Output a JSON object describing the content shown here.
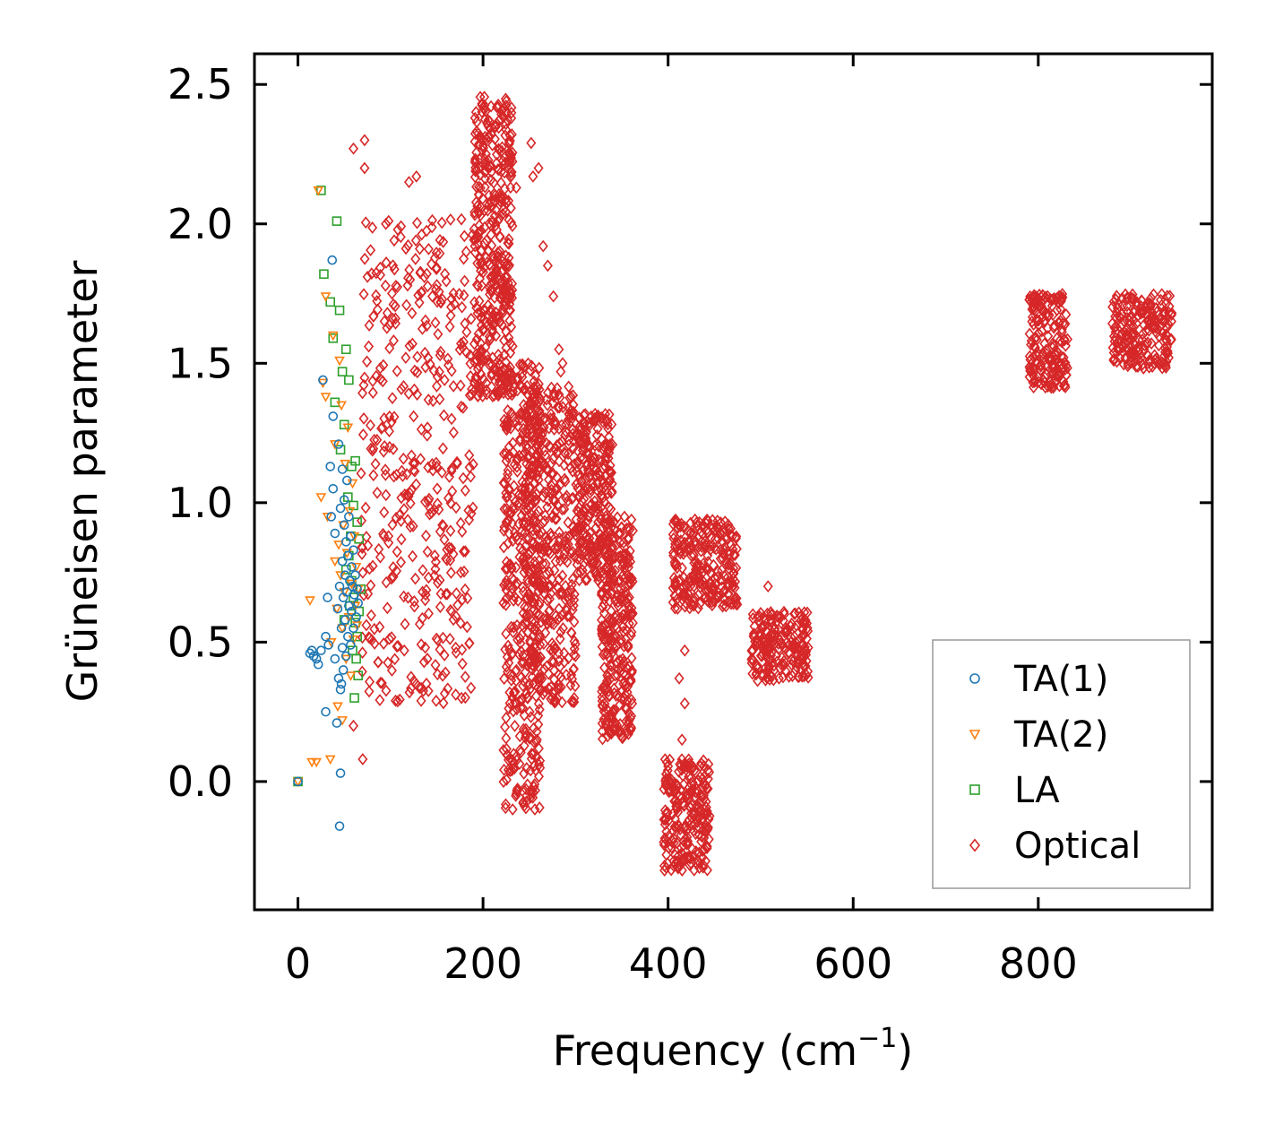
{
  "chart_data": {
    "type": "scatter",
    "title": "",
    "xlabel": "Frequency (cm",
    "xlabel_sup": "−1",
    "xlabel_tail": ")",
    "ylabel": "Grüneisen parameter",
    "xlim": [
      -47,
      988
    ],
    "ylim": [
      -0.46,
      2.61
    ],
    "xticks": [
      0,
      200,
      400,
      600,
      800
    ],
    "xtick_labels": [
      "0",
      "200",
      "400",
      "600",
      "800"
    ],
    "yticks": [
      0.0,
      0.5,
      1.0,
      1.5,
      2.0,
      2.5
    ],
    "ytick_labels": [
      "0.0",
      "0.5",
      "1.0",
      "1.5",
      "2.0",
      "2.5"
    ],
    "grid": false,
    "legend_position": "lower-right",
    "series": [
      {
        "name": "TA(1)",
        "marker": "circle",
        "color": "#1f77b4",
        "points": [
          [
            0,
            0
          ],
          [
            13,
            0.46
          ],
          [
            15,
            0.47
          ],
          [
            17,
            0.45
          ],
          [
            20,
            0.44
          ],
          [
            22,
            0.42
          ],
          [
            25,
            0.47
          ],
          [
            27,
            1.44
          ],
          [
            30,
            0.25
          ],
          [
            30,
            0.52
          ],
          [
            32,
            0.66
          ],
          [
            33,
            0.49
          ],
          [
            35,
            1.13
          ],
          [
            37,
            1.87
          ],
          [
            38,
            1.05
          ],
          [
            40,
            0.44
          ],
          [
            40,
            0.89
          ],
          [
            42,
            0.21
          ],
          [
            43,
            0.62
          ],
          [
            44,
            1.21
          ],
          [
            45,
            -0.16
          ],
          [
            45,
            0.7
          ],
          [
            46,
            0.03
          ],
          [
            46,
            0.98
          ],
          [
            47,
            0.35
          ],
          [
            47,
            0.55
          ],
          [
            48,
            0.79
          ],
          [
            48,
            1.12
          ],
          [
            49,
            0.4
          ],
          [
            49,
            0.66
          ],
          [
            50,
            0.92
          ],
          [
            50,
            1.01
          ],
          [
            51,
            0.58
          ],
          [
            51,
            0.74
          ],
          [
            52,
            0.45
          ],
          [
            52,
            0.86
          ],
          [
            53,
            0.68
          ],
          [
            53,
            1.08
          ],
          [
            54,
            0.52
          ],
          [
            54,
            0.81
          ],
          [
            55,
            0.63
          ],
          [
            55,
            0.95
          ],
          [
            56,
            0.72
          ],
          [
            57,
            0.49
          ],
          [
            57,
            0.88
          ],
          [
            58,
            0.61
          ],
          [
            58,
            0.77
          ],
          [
            59,
            0.7
          ],
          [
            60,
            0.55
          ],
          [
            60,
            0.83
          ],
          [
            61,
            0.67
          ],
          [
            62,
            0.74
          ],
          [
            63,
            0.59
          ],
          [
            64,
            0.69
          ],
          [
            65,
            0.64
          ],
          [
            44,
            0.37
          ],
          [
            46,
            0.33
          ],
          [
            48,
            0.48
          ],
          [
            38,
            1.31
          ],
          [
            36,
            0.95
          ]
        ]
      },
      {
        "name": "TA(2)",
        "marker": "triangle-down",
        "color": "#ff7f0e",
        "points": [
          [
            0,
            0
          ],
          [
            13,
            0.65
          ],
          [
            15,
            0.07
          ],
          [
            20,
            0.07
          ],
          [
            22,
            2.12
          ],
          [
            25,
            1.02
          ],
          [
            27,
            1.43
          ],
          [
            30,
            1.74
          ],
          [
            30,
            1.38
          ],
          [
            32,
            0.95
          ],
          [
            35,
            0.08
          ],
          [
            36,
            0.5
          ],
          [
            38,
            1.6
          ],
          [
            40,
            0.79
          ],
          [
            40,
            1.21
          ],
          [
            42,
            0.62
          ],
          [
            44,
            0.85
          ],
          [
            45,
            1.51
          ],
          [
            46,
            0.74
          ],
          [
            47,
            1.35
          ],
          [
            48,
            0.55
          ],
          [
            49,
            0.92
          ],
          [
            50,
            0.68
          ],
          [
            51,
            1.14
          ],
          [
            52,
            0.44
          ],
          [
            53,
            0.82
          ],
          [
            54,
            1.27
          ],
          [
            55,
            0.59
          ],
          [
            56,
            0.97
          ],
          [
            57,
            0.38
          ],
          [
            58,
            0.71
          ],
          [
            59,
            1.07
          ],
          [
            60,
            0.51
          ],
          [
            61,
            0.88
          ],
          [
            62,
            0.63
          ],
          [
            63,
            0.77
          ],
          [
            64,
            0.56
          ],
          [
            65,
            0.69
          ],
          [
            48,
            0.22
          ],
          [
            43,
            0.27
          ]
        ]
      },
      {
        "name": "LA",
        "marker": "square",
        "color": "#2ca02c",
        "points": [
          [
            0,
            0
          ],
          [
            25,
            2.12
          ],
          [
            42,
            2.01
          ],
          [
            28,
            1.82
          ],
          [
            35,
            1.72
          ],
          [
            45,
            1.69
          ],
          [
            48,
            1.47
          ],
          [
            38,
            1.59
          ],
          [
            40,
            1.36
          ],
          [
            52,
            1.55
          ],
          [
            50,
            1.28
          ],
          [
            55,
            1.44
          ],
          [
            46,
            1.19
          ],
          [
            58,
            1.13
          ],
          [
            60,
            0.99
          ],
          [
            62,
            1.15
          ],
          [
            64,
            0.93
          ],
          [
            66,
            0.87
          ],
          [
            55,
            0.81
          ],
          [
            58,
            0.72
          ],
          [
            60,
            0.66
          ],
          [
            62,
            0.57
          ],
          [
            64,
            0.52
          ],
          [
            66,
            0.61
          ],
          [
            68,
            0.69
          ],
          [
            63,
            0.44
          ],
          [
            65,
            0.38
          ],
          [
            61,
            0.3
          ],
          [
            59,
            0.47
          ],
          [
            56,
            0.63
          ],
          [
            57,
            0.88
          ],
          [
            54,
            1.02
          ],
          [
            52,
            0.76
          ],
          [
            50,
            0.58
          ]
        ]
      },
      {
        "name": "Optical",
        "marker": "diamond",
        "color": "#d62728",
        "regions": [
          {
            "freq": [
              68,
              190
            ],
            "gamma": [
              0.28,
              2.02
            ]
          },
          {
            "freq": [
              190,
              232
            ],
            "gamma": [
              1.38,
              2.46
            ]
          },
          {
            "freq": [
              222,
              262
            ],
            "gamma": [
              -0.1,
              1.5
            ]
          },
          {
            "freq": [
              245,
              300
            ],
            "gamma": [
              0.28,
              1.42
            ]
          },
          {
            "freq": [
              300,
              340
            ],
            "gamma": [
              0.72,
              1.32
            ]
          },
          {
            "freq": [
              328,
              362
            ],
            "gamma": [
              0.15,
              0.95
            ]
          },
          {
            "freq": [
              395,
              445
            ],
            "gamma": [
              -0.32,
              0.08
            ]
          },
          {
            "freq": [
              405,
              475
            ],
            "gamma": [
              0.62,
              0.94
            ]
          },
          {
            "freq": [
              490,
              552
            ],
            "gamma": [
              0.36,
              0.61
            ]
          },
          {
            "freq": [
              790,
              832
            ],
            "gamma": [
              1.41,
              1.75
            ]
          },
          {
            "freq": [
              880,
              945
            ],
            "gamma": [
              1.48,
              1.75
            ]
          }
        ],
        "outliers": [
          [
            60,
            2.27
          ],
          [
            72,
            2.3
          ],
          [
            72,
            2.2
          ],
          [
            95,
            2.0
          ],
          [
            98,
            2.01
          ],
          [
            120,
            2.15
          ],
          [
            128,
            2.17
          ],
          [
            138,
            0.67
          ],
          [
            168,
            1.75
          ],
          [
            208,
            2.08
          ],
          [
            236,
            2.13
          ],
          [
            252,
            2.29
          ],
          [
            254,
            2.17
          ],
          [
            260,
            2.2
          ],
          [
            265,
            1.92
          ],
          [
            270,
            1.85
          ],
          [
            276,
            1.74
          ],
          [
            282,
            1.55
          ],
          [
            286,
            1.5
          ],
          [
            284,
            1.47
          ],
          [
            508,
            0.7
          ],
          [
            418,
            0.47
          ],
          [
            412,
            0.37
          ],
          [
            418,
            0.28
          ],
          [
            415,
            0.15
          ],
          [
            232,
            -0.1
          ],
          [
            256,
            -0.1
          ],
          [
            70,
            0.08
          ],
          [
            60,
            0.2
          ]
        ]
      }
    ]
  }
}
